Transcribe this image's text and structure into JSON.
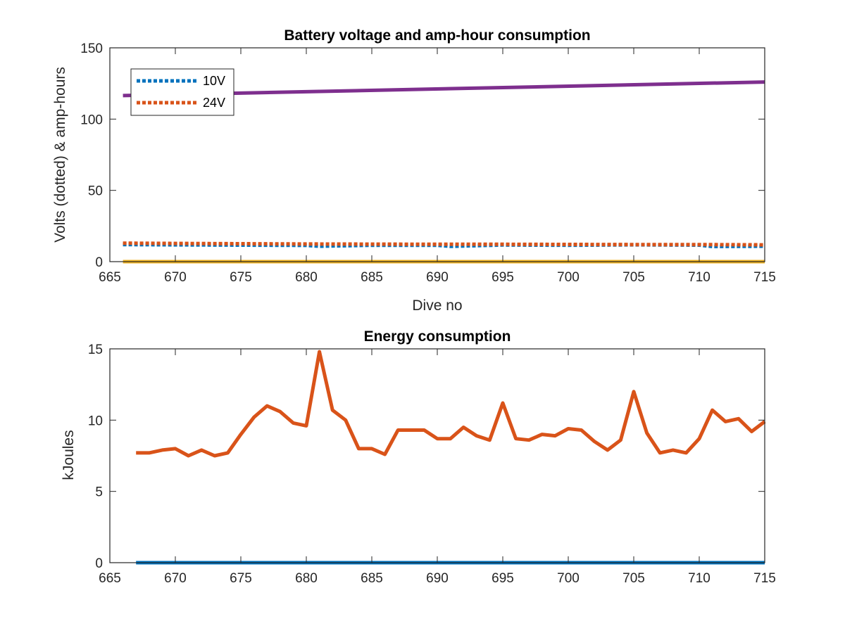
{
  "chart_data": [
    {
      "type": "line",
      "title": "Battery voltage and amp-hour consumption",
      "xlabel": "Dive no",
      "ylabel": "Volts (dotted) & amp-hours",
      "xlim": [
        665,
        715
      ],
      "ylim": [
        0,
        150
      ],
      "xticks": [
        665,
        670,
        675,
        680,
        685,
        690,
        695,
        700,
        705,
        710,
        715
      ],
      "yticks": [
        0,
        50,
        100,
        150
      ],
      "grid": false,
      "legend_position": "top-left",
      "series": [
        {
          "name": "10V",
          "style": "dotted",
          "color": "#0072BD",
          "x": [
            666,
            670,
            675,
            680,
            681,
            685,
            690,
            691,
            695,
            700,
            705,
            710,
            711,
            715
          ],
          "values": [
            12,
            11.8,
            11.6,
            11.4,
            10.8,
            11.5,
            11.5,
            10.7,
            11.7,
            11.5,
            11.8,
            11.6,
            10.6,
            10.8
          ]
        },
        {
          "name": "24V",
          "style": "dotted",
          "color": "#D95319",
          "x": [
            666,
            670,
            675,
            680,
            685,
            690,
            695,
            700,
            705,
            710,
            715
          ],
          "values": [
            13,
            12.8,
            12.6,
            12.4,
            12.3,
            12.2,
            12.2,
            12.1,
            12.0,
            12.0,
            11.8
          ]
        },
        {
          "style": "solid",
          "color": "#7E2F8E",
          "x": [
            666,
            715
          ],
          "values": [
            116.5,
            126
          ]
        },
        {
          "style": "solid",
          "color": "#EDB120",
          "x": [
            666,
            715
          ],
          "values": [
            0,
            0
          ]
        }
      ]
    },
    {
      "type": "line",
      "title": "Energy consumption",
      "xlabel": "",
      "ylabel": "kJoules",
      "xlim": [
        665,
        715
      ],
      "ylim": [
        0,
        15
      ],
      "xticks": [
        665,
        670,
        675,
        680,
        685,
        690,
        695,
        700,
        705,
        710,
        715
      ],
      "yticks": [
        0,
        5,
        10,
        15
      ],
      "grid": false,
      "series": [
        {
          "style": "solid",
          "color": "#D95319",
          "x": [
            667,
            668,
            669,
            670,
            671,
            672,
            673,
            674,
            675,
            676,
            677,
            678,
            679,
            680,
            681,
            682,
            683,
            684,
            685,
            686,
            687,
            688,
            689,
            690,
            691,
            692,
            693,
            694,
            695,
            696,
            697,
            698,
            699,
            700,
            701,
            702,
            703,
            704,
            705,
            706,
            707,
            708,
            709,
            710,
            711,
            712,
            713,
            714,
            715
          ],
          "values": [
            7.7,
            7.7,
            7.9,
            8.0,
            7.5,
            7.9,
            7.5,
            7.7,
            9.0,
            10.2,
            11.0,
            10.6,
            9.8,
            9.6,
            14.8,
            10.7,
            10.0,
            8.0,
            8.0,
            7.6,
            9.3,
            9.3,
            9.3,
            8.7,
            8.7,
            9.5,
            8.9,
            8.6,
            11.2,
            8.7,
            8.6,
            9.0,
            8.9,
            9.4,
            9.3,
            8.5,
            7.9,
            8.6,
            12.0,
            9.1,
            7.7,
            7.9,
            7.7,
            8.7,
            10.7,
            9.9,
            10.1,
            9.2,
            9.9
          ]
        },
        {
          "style": "solid",
          "color": "#0072BD",
          "x": [
            667,
            715
          ],
          "values": [
            0,
            0
          ]
        }
      ]
    }
  ]
}
